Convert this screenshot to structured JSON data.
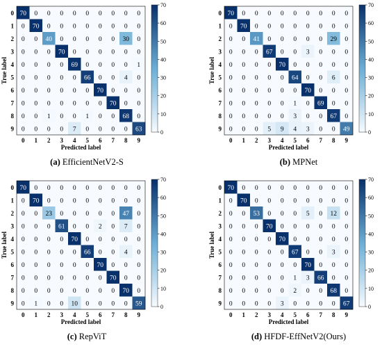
{
  "colormap": {
    "low": "#f7fbff",
    "high": "#08306b",
    "dark_text": "#000000",
    "light_text": "#ffffff"
  },
  "chart_data": [
    {
      "type": "heatmap",
      "caption_tag": "(a)",
      "caption_text": "EfficientNetV2-S",
      "xlabel": "Predicted label",
      "ylabel": "True label",
      "categories": [
        "0",
        "1",
        "2",
        "3",
        "4",
        "5",
        "6",
        "7",
        "8",
        "9"
      ],
      "colorbar_ticks": [
        0,
        10,
        20,
        30,
        40,
        50,
        60,
        70
      ],
      "vmin": 0,
      "vmax": 70,
      "matrix": [
        [
          70,
          0,
          0,
          0,
          0,
          0,
          0,
          0,
          0,
          0
        ],
        [
          0,
          70,
          0,
          0,
          0,
          0,
          0,
          0,
          0,
          0
        ],
        [
          0,
          0,
          40,
          0,
          0,
          0,
          0,
          0,
          30,
          0
        ],
        [
          0,
          0,
          0,
          70,
          0,
          0,
          0,
          0,
          0,
          0
        ],
        [
          0,
          0,
          0,
          0,
          69,
          0,
          0,
          0,
          0,
          1
        ],
        [
          0,
          0,
          0,
          0,
          0,
          66,
          0,
          0,
          4,
          0
        ],
        [
          0,
          0,
          0,
          0,
          0,
          0,
          70,
          0,
          0,
          0
        ],
        [
          0,
          0,
          0,
          0,
          0,
          0,
          0,
          70,
          0,
          0
        ],
        [
          0,
          0,
          1,
          0,
          0,
          1,
          0,
          0,
          68,
          0
        ],
        [
          0,
          0,
          0,
          0,
          7,
          0,
          0,
          0,
          0,
          63
        ]
      ]
    },
    {
      "type": "heatmap",
      "caption_tag": "(b)",
      "caption_text": "MPNet",
      "xlabel": "Predicted label",
      "ylabel": "True label",
      "categories": [
        "0",
        "1",
        "2",
        "3",
        "4",
        "5",
        "6",
        "7",
        "8",
        "9"
      ],
      "colorbar_ticks": [
        0,
        10,
        20,
        30,
        40,
        50,
        60,
        70
      ],
      "vmin": 0,
      "vmax": 70,
      "matrix": [
        [
          70,
          0,
          0,
          0,
          0,
          0,
          0,
          0,
          0,
          0
        ],
        [
          0,
          70,
          0,
          0,
          0,
          0,
          0,
          0,
          0,
          0
        ],
        [
          0,
          0,
          41,
          0,
          0,
          0,
          0,
          0,
          29,
          0
        ],
        [
          0,
          0,
          0,
          67,
          0,
          0,
          3,
          0,
          0,
          0
        ],
        [
          0,
          0,
          0,
          0,
          70,
          0,
          0,
          0,
          0,
          0
        ],
        [
          0,
          0,
          0,
          0,
          0,
          64,
          0,
          0,
          6,
          0
        ],
        [
          0,
          0,
          0,
          0,
          0,
          0,
          70,
          0,
          0,
          0
        ],
        [
          0,
          0,
          0,
          0,
          0,
          1,
          0,
          69,
          0,
          0
        ],
        [
          0,
          0,
          0,
          0,
          0,
          3,
          0,
          0,
          67,
          0
        ],
        [
          0,
          0,
          0,
          5,
          9,
          4,
          3,
          0,
          0,
          49
        ]
      ]
    },
    {
      "type": "heatmap",
      "caption_tag": "(c)",
      "caption_text": "RepViT",
      "xlabel": "Predicted label",
      "ylabel": "True label",
      "categories": [
        "0",
        "1",
        "2",
        "3",
        "4",
        "5",
        "6",
        "7",
        "8",
        "9"
      ],
      "colorbar_ticks": [
        0,
        10,
        20,
        30,
        40,
        50,
        60,
        70
      ],
      "vmin": 0,
      "vmax": 70,
      "matrix": [
        [
          70,
          0,
          0,
          0,
          0,
          0,
          0,
          0,
          0,
          0
        ],
        [
          0,
          70,
          0,
          0,
          0,
          0,
          0,
          0,
          0,
          0
        ],
        [
          0,
          0,
          23,
          0,
          0,
          0,
          0,
          0,
          47,
          0
        ],
        [
          0,
          0,
          0,
          61,
          0,
          0,
          2,
          0,
          7,
          0
        ],
        [
          0,
          0,
          0,
          0,
          70,
          0,
          0,
          0,
          0,
          0
        ],
        [
          0,
          0,
          0,
          0,
          0,
          66,
          0,
          0,
          4,
          0
        ],
        [
          0,
          0,
          0,
          0,
          0,
          0,
          70,
          0,
          0,
          0
        ],
        [
          0,
          0,
          0,
          0,
          0,
          0,
          0,
          70,
          0,
          0
        ],
        [
          0,
          0,
          0,
          0,
          0,
          0,
          0,
          0,
          70,
          0
        ],
        [
          0,
          1,
          0,
          0,
          10,
          0,
          0,
          0,
          0,
          59
        ]
      ]
    },
    {
      "type": "heatmap",
      "caption_tag": "(d)",
      "caption_text": "HFDF-EffNetV2(Ours)",
      "xlabel": "Predicted label",
      "ylabel": "True label",
      "categories": [
        "0",
        "1",
        "2",
        "3",
        "4",
        "5",
        "6",
        "7",
        "8",
        "9"
      ],
      "colorbar_ticks": [
        0,
        10,
        20,
        30,
        40,
        50,
        60,
        70
      ],
      "vmin": 0,
      "vmax": 70,
      "matrix": [
        [
          70,
          0,
          0,
          0,
          0,
          0,
          0,
          0,
          0,
          0
        ],
        [
          0,
          70,
          0,
          0,
          0,
          0,
          0,
          0,
          0,
          0
        ],
        [
          0,
          0,
          53,
          0,
          0,
          0,
          5,
          0,
          12,
          0
        ],
        [
          0,
          0,
          0,
          70,
          0,
          0,
          0,
          0,
          0,
          0
        ],
        [
          0,
          0,
          0,
          0,
          70,
          0,
          0,
          0,
          0,
          0
        ],
        [
          0,
          0,
          0,
          0,
          0,
          67,
          0,
          0,
          3,
          0
        ],
        [
          0,
          0,
          0,
          0,
          0,
          0,
          70,
          0,
          0,
          0
        ],
        [
          0,
          0,
          0,
          0,
          0,
          1,
          3,
          66,
          0,
          0
        ],
        [
          0,
          0,
          0,
          0,
          0,
          2,
          0,
          0,
          68,
          0
        ],
        [
          0,
          0,
          0,
          0,
          3,
          0,
          0,
          0,
          0,
          67
        ]
      ]
    }
  ]
}
